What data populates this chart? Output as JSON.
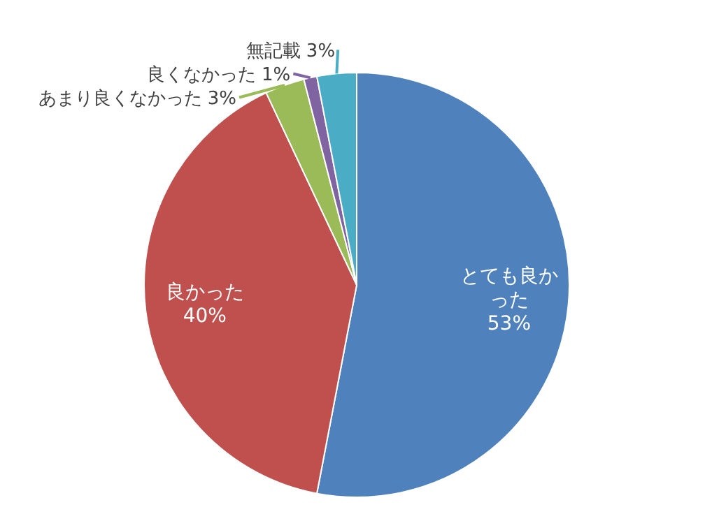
{
  "chart_data": {
    "type": "pie",
    "categories": [
      "とても良かった",
      "良かった",
      "あまり良くなかった",
      "良くなかった",
      "無記載"
    ],
    "values": [
      53,
      40,
      3,
      1,
      3
    ],
    "colors": [
      "#4f81bd",
      "#c0504d",
      "#9bbb59",
      "#8064a2",
      "#4bacc6"
    ],
    "value_labels": [
      "53%",
      "40%",
      "3%",
      "1%",
      "3%"
    ]
  }
}
